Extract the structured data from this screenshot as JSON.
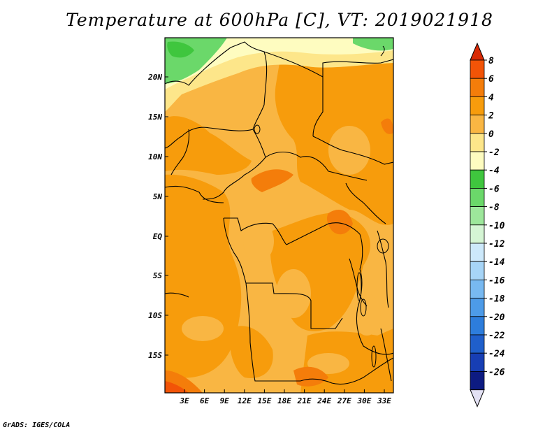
{
  "title": "Temperature at 600hPa [C], VT: 2019021918",
  "credit": "GrADS: IGES/COLA",
  "lat_labels": [
    "20N",
    "15N",
    "10N",
    "5N",
    "EQ",
    "5S",
    "10S",
    "15S"
  ],
  "lon_labels": [
    "3E",
    "6E",
    "9E",
    "12E",
    "15E",
    "18E",
    "21E",
    "24E",
    "27E",
    "30E",
    "33E"
  ],
  "colorbar": {
    "labels": [
      "8",
      "6",
      "4",
      "2",
      "0",
      "-2",
      "-4",
      "-6",
      "-8",
      "-10",
      "-12",
      "-14",
      "-16",
      "-18",
      "-20",
      "-22",
      "-24",
      "-26"
    ],
    "colors": [
      "#d92a05",
      "#f25407",
      "#f47d0a",
      "#f79c0c",
      "#f9b643",
      "#fde68a",
      "#fefcc0",
      "#3fc63e",
      "#6bd86a",
      "#9de79b",
      "#d5f5d4",
      "#cde9fb",
      "#a7d5f7",
      "#78b9f1",
      "#4d9be8",
      "#2d7ddc",
      "#1f5fcb",
      "#173eb4",
      "#0d1b82",
      "#e3e1f4"
    ]
  }
}
